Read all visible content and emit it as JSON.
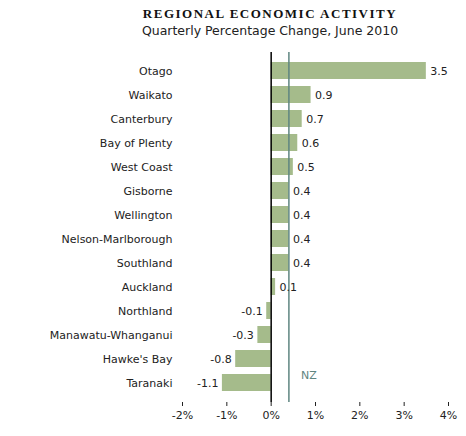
{
  "chart_data": {
    "type": "bar",
    "orientation": "horizontal",
    "title": "REGIONAL ECONOMIC ACTIVITY",
    "subtitle": "Quarterly Percentage Change, June 2010",
    "categories": [
      "Otago",
      "Waikato",
      "Canterbury",
      "Bay of Plenty",
      "West Coast",
      "Gisborne",
      "Wellington",
      "Nelson-Marlborough",
      "Southland",
      "Auckland",
      "Northland",
      "Manawatu-Whanganui",
      "Hawke's Bay",
      "Taranaki"
    ],
    "values": [
      3.5,
      0.9,
      0.7,
      0.6,
      0.5,
      0.4,
      0.4,
      0.4,
      0.4,
      0.1,
      -0.1,
      -0.3,
      -0.8,
      -1.1
    ],
    "color": "#a5bb8b",
    "data_labels": true,
    "xlim": [
      -2,
      4
    ],
    "xticks": [
      {
        "value": -2,
        "label": "-2%"
      },
      {
        "value": -1,
        "label": "-1%"
      },
      {
        "value": 0,
        "label": "0%"
      },
      {
        "value": 1,
        "label": "1%"
      },
      {
        "value": 2,
        "label": "2%"
      },
      {
        "value": 3,
        "label": "3%"
      },
      {
        "value": 4,
        "label": "4%"
      }
    ],
    "grid": false,
    "annotations": [
      {
        "text": "NZ",
        "x": 0.4
      }
    ]
  }
}
